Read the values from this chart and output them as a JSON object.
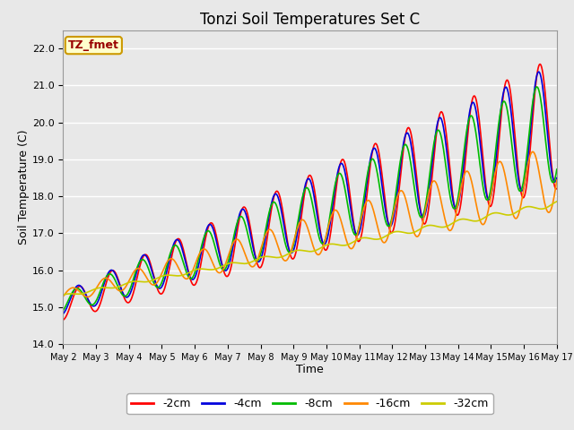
{
  "title": "Tonzi Soil Temperatures Set C",
  "xlabel": "Time",
  "ylabel": "Soil Temperature (C)",
  "ylim": [
    14.0,
    22.5
  ],
  "yticks": [
    14.0,
    15.0,
    16.0,
    17.0,
    18.0,
    19.0,
    20.0,
    21.0,
    22.0
  ],
  "xtick_labels": [
    "May 2",
    "May 3",
    "May 4",
    "May 5",
    "May 6",
    "May 7",
    "May 8",
    "May 9",
    "May 10",
    "May 11",
    "May 12",
    "May 13",
    "May 14",
    "May 15",
    "May 16",
    "May 17"
  ],
  "legend_labels": [
    "-2cm",
    "-4cm",
    "-8cm",
    "-16cm",
    "-32cm"
  ],
  "legend_colors": [
    "#ff0000",
    "#0000dd",
    "#00bb00",
    "#ff8800",
    "#cccc00"
  ],
  "annotation_text": "TZ_fmet",
  "annotation_bg": "#ffffcc",
  "annotation_border": "#cc9900",
  "plot_bg": "#e8e8e8",
  "fig_bg": "#e8e8e8",
  "grid_color": "#ffffff",
  "title_fontsize": 12,
  "axis_fontsize": 9,
  "tick_fontsize": 8
}
